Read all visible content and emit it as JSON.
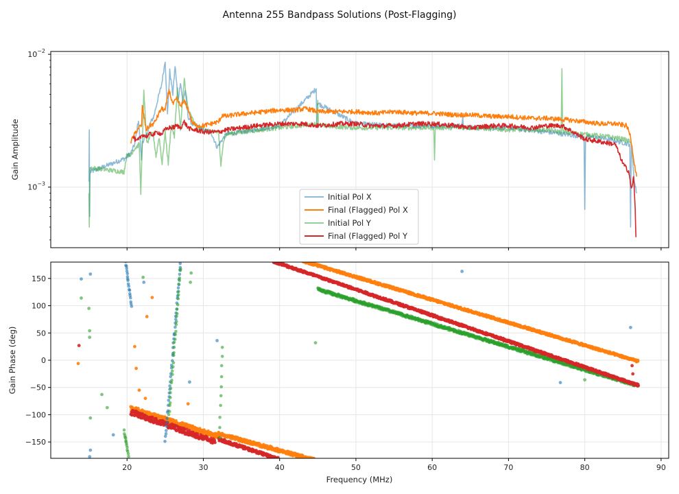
{
  "figure": {
    "suptitle": "Antenna 255 Bandpass Solutions (Post-Flagging)"
  },
  "colors": {
    "initial_x": "#1f77b4",
    "final_x": "#ff7f0e",
    "initial_y": "#2ca02c",
    "final_y": "#d62728",
    "grid": "#e6e6e6",
    "axis": "#000000"
  },
  "chart_data": [
    {
      "type": "line",
      "title": "",
      "xlabel": "",
      "ylabel": "Gain Amplitude",
      "yscale": "log",
      "xlim": [
        10,
        91
      ],
      "ylim": [
        0.00035,
        0.0105
      ],
      "grid": true,
      "legend": {
        "placement": "lower-center"
      },
      "x_ticks": [
        20,
        30,
        40,
        50,
        60,
        70,
        80,
        90
      ],
      "y_ticks": [
        {
          "value": 0.001,
          "base": "10",
          "exp": "−3"
        },
        {
          "value": 0.01,
          "base": "10",
          "exp": "−2"
        }
      ],
      "series": [
        {
          "name": "Initial Pol X",
          "color_key": "initial_x",
          "alpha": 0.5,
          "x": [
            15.0,
            15.05,
            15.1,
            15.15,
            15.2,
            19.8,
            20.5,
            21.0,
            21.5,
            21.9,
            22.0,
            22.5,
            23.0,
            23.5,
            24.0,
            24.5,
            25.0,
            25.3,
            25.6,
            26.0,
            26.3,
            26.7,
            27.0,
            27.3,
            27.6,
            28.0,
            28.5,
            29.0,
            30.0,
            31.0,
            31.8,
            32.3,
            33.0,
            35.0,
            40.0,
            44.8,
            44.85,
            44.9,
            50.0,
            55.0,
            60.0,
            63.9,
            64.0,
            64.1,
            70.0,
            75.0,
            79.9,
            80.0,
            80.1,
            83.0,
            85.9,
            86.0,
            86.1,
            86.5,
            86.8
          ],
          "y": [
            0.0011,
            0.0027,
            0.0006,
            0.0014,
            0.0013,
            0.00165,
            0.0018,
            0.0021,
            0.0032,
            0.0016,
            0.0022,
            0.0024,
            0.003,
            0.0034,
            0.0045,
            0.0058,
            0.009,
            0.0035,
            0.0075,
            0.005,
            0.0082,
            0.0045,
            0.0062,
            0.0044,
            0.0053,
            0.0034,
            0.003,
            0.0029,
            0.0027,
            0.0026,
            0.002,
            0.0022,
            0.0025,
            0.0026,
            0.0029,
            0.0055,
            0.0029,
            0.0043,
            0.003,
            0.0029,
            0.0029,
            0.0029,
            0.0034,
            0.0028,
            0.0028,
            0.0026,
            0.0024,
            0.00068,
            0.0024,
            0.0023,
            0.0021,
            0.0005,
            0.0021,
            0.0011,
            0.0009
          ]
        },
        {
          "name": "Final (Flagged) Pol X",
          "color_key": "final_x",
          "alpha": 1,
          "x": [
            20.5,
            21.0,
            21.5,
            21.9,
            22.0,
            22.5,
            23.0,
            23.5,
            24.0,
            24.5,
            25.0,
            25.5,
            26.0,
            26.5,
            27.0,
            27.5,
            28.0,
            28.5,
            29.0,
            30.0,
            31.0,
            32.0,
            32.5,
            33.0,
            34.0,
            36.0,
            38.0,
            40.0,
            42.0,
            43.5,
            45.0,
            47.0,
            50.0,
            53.0,
            55.0,
            58.0,
            60.0,
            63.0,
            65.0,
            68.0,
            70.0,
            73.0,
            75.0,
            78.0,
            80.0,
            82.0,
            84.0,
            85.5,
            86.0,
            86.5,
            86.8
          ],
          "y": [
            0.0022,
            0.0025,
            0.0028,
            0.0029,
            0.0041,
            0.0027,
            0.0029,
            0.003,
            0.0034,
            0.0039,
            0.0038,
            0.0054,
            0.0042,
            0.0046,
            0.0041,
            0.0044,
            0.0039,
            0.0031,
            0.0029,
            0.0029,
            0.003,
            0.0031,
            0.0035,
            0.0034,
            0.0035,
            0.0036,
            0.0037,
            0.0038,
            0.0038,
            0.0039,
            0.0037,
            0.0037,
            0.0037,
            0.0036,
            0.0037,
            0.0036,
            0.0036,
            0.0035,
            0.0035,
            0.0034,
            0.0034,
            0.0033,
            0.0033,
            0.0032,
            0.0031,
            0.003,
            0.003,
            0.0029,
            0.0024,
            0.0015,
            0.0012
          ]
        },
        {
          "name": "Initial Pol Y",
          "color_key": "initial_y",
          "alpha": 0.5,
          "x": [
            15.0,
            15.05,
            15.1,
            15.15,
            19.6,
            20.0,
            20.4,
            20.8,
            21.2,
            21.6,
            21.8,
            22.2,
            22.6,
            23.0,
            23.4,
            23.8,
            24.2,
            24.6,
            25.0,
            25.4,
            25.8,
            26.2,
            26.6,
            27.0,
            27.5,
            28.0,
            29.0,
            30.0,
            31.0,
            32.0,
            32.3,
            32.6,
            33.0,
            35.0,
            40.0,
            44.9,
            45.0,
            45.1,
            50.0,
            55.0,
            60.2,
            60.3,
            60.4,
            65.0,
            70.0,
            75.0,
            76.9,
            77.0,
            77.1,
            80.0,
            83.0,
            85.0,
            86.0
          ],
          "y": [
            0.0009,
            0.0005,
            0.0011,
            0.0014,
            0.0013,
            0.0018,
            0.0017,
            0.0019,
            0.002,
            0.0021,
            0.0009,
            0.0052,
            0.0021,
            0.0024,
            0.0026,
            0.0017,
            0.0024,
            0.0015,
            0.0026,
            0.0015,
            0.003,
            0.0024,
            0.0055,
            0.0027,
            0.0066,
            0.0038,
            0.0029,
            0.0027,
            0.0026,
            0.0026,
            0.0014,
            0.0022,
            0.0025,
            0.0026,
            0.0028,
            0.003,
            0.0045,
            0.0029,
            0.0028,
            0.0028,
            0.0028,
            0.0016,
            0.0028,
            0.0028,
            0.0027,
            0.0027,
            0.0026,
            0.0078,
            0.0026,
            0.0025,
            0.0024,
            0.0023,
            0.0022
          ]
        },
        {
          "name": "Final (Flagged) Pol Y",
          "color_key": "final_y",
          "alpha": 1,
          "x": [
            20.8,
            21.2,
            21.6,
            22.0,
            22.5,
            23.0,
            23.5,
            24.0,
            24.5,
            25.0,
            25.5,
            26.0,
            26.5,
            27.0,
            27.5,
            28.0,
            28.5,
            29.0,
            30.0,
            31.0,
            32.0,
            33.0,
            35.0,
            37.0,
            40.0,
            43.0,
            45.0,
            48.0,
            50.0,
            52.0,
            55.0,
            58.0,
            60.0,
            63.0,
            65.0,
            68.0,
            70.0,
            73.0,
            75.0,
            77.0,
            78.0,
            80.0,
            82.0,
            84.0,
            85.0,
            85.8,
            86.1,
            86.4,
            86.6,
            86.7
          ],
          "y": [
            0.0024,
            0.0022,
            0.0023,
            0.0025,
            0.0024,
            0.0025,
            0.0025,
            0.0026,
            0.0025,
            0.0027,
            0.0028,
            0.0028,
            0.0029,
            0.0028,
            0.0031,
            0.0028,
            0.0027,
            0.0027,
            0.0026,
            0.0026,
            0.0026,
            0.0027,
            0.0028,
            0.0029,
            0.003,
            0.003,
            0.0029,
            0.003,
            0.003,
            0.0029,
            0.0029,
            0.003,
            0.003,
            0.0029,
            0.0028,
            0.0029,
            0.0029,
            0.0028,
            0.0029,
            0.0029,
            0.0027,
            0.0023,
            0.0022,
            0.0021,
            0.0015,
            0.0013,
            0.00095,
            0.0012,
            0.0007,
            0.00042
          ]
        }
      ]
    },
    {
      "type": "scatter",
      "title": "",
      "xlabel": "Frequency (MHz)",
      "ylabel": "Gain Phase (deg)",
      "xlim": [
        10,
        91
      ],
      "ylim": [
        -180,
        180
      ],
      "grid": true,
      "x_ticks": [
        20,
        30,
        40,
        50,
        60,
        70,
        80,
        90
      ],
      "y_ticks": [
        -150,
        -100,
        -50,
        0,
        50,
        100,
        150
      ],
      "tracks": [
        {
          "series": "Final (Flagged) Pol X",
          "color_key": "final_x",
          "x_start": 20.5,
          "y_start": -88,
          "x_end": 32.0,
          "y_end": -140,
          "spread": 8
        },
        {
          "series": "Final (Flagged) Pol X",
          "color_key": "final_x",
          "x_start": 32.0,
          "y_start": -135,
          "x_end": 45.0,
          "y_end": -185,
          "spread": 6
        },
        {
          "series": "Final (Flagged) Pol X",
          "color_key": "final_x",
          "x_start": 43.0,
          "y_start": 182,
          "x_end": 87.0,
          "y_end": -2,
          "spread": 4
        },
        {
          "series": "Initial Pol Y",
          "color_key": "initial_y",
          "x_start": 45.0,
          "y_start": 130,
          "x_end": 86.5,
          "y_end": -45,
          "spread": 5
        },
        {
          "series": "Final (Flagged) Pol Y",
          "color_key": "final_y",
          "x_start": 39.0,
          "y_start": 182,
          "x_end": 87.0,
          "y_end": -46,
          "spread": 4
        },
        {
          "series": "Final (Flagged) Pol Y",
          "color_key": "final_y",
          "x_start": 20.5,
          "y_start": -95,
          "x_end": 31.5,
          "y_end": -150,
          "spread": 10
        },
        {
          "series": "Final (Flagged) Pol Y",
          "color_key": "final_y",
          "x_start": 32.0,
          "y_start": -145,
          "x_end": 40.0,
          "y_end": -182,
          "spread": 5
        },
        {
          "series": "Initial Pol X",
          "color_key": "initial_x",
          "x_start": 19.8,
          "y_start": 180,
          "x_end": 20.6,
          "y_end": 100,
          "spread": 4
        },
        {
          "series": "Initial Pol X",
          "color_key": "initial_x",
          "x_start": 25.0,
          "y_start": -150,
          "x_end": 27.0,
          "y_end": 178,
          "spread": 6
        },
        {
          "series": "Initial Pol Y",
          "color_key": "initial_y",
          "x_start": 19.6,
          "y_start": -130,
          "x_end": 20.2,
          "y_end": -175,
          "spread": 4
        },
        {
          "series": "Initial Pol Y",
          "color_key": "initial_y",
          "x_start": 32.1,
          "y_start": -140,
          "x_end": 32.5,
          "y_end": 25,
          "spread": 5
        },
        {
          "series": "Initial Pol Y",
          "color_key": "initial_y",
          "x_start": 25.5,
          "y_start": -100,
          "x_end": 27.0,
          "y_end": 170,
          "spread": 6
        }
      ],
      "outliers": [
        {
          "color_key": "initial_x",
          "x": 14.0,
          "y": 149
        },
        {
          "color_key": "initial_x",
          "x": 15.2,
          "y": 158
        },
        {
          "color_key": "initial_x",
          "x": 15.2,
          "y": -165
        },
        {
          "color_key": "initial_x",
          "x": 18.2,
          "y": -137
        },
        {
          "color_key": "initial_x",
          "x": 31.8,
          "y": 36
        },
        {
          "color_key": "initial_x",
          "x": 63.9,
          "y": 163
        },
        {
          "color_key": "initial_x",
          "x": 76.8,
          "y": -41
        },
        {
          "color_key": "initial_x",
          "x": 86.0,
          "y": 60
        },
        {
          "color_key": "initial_x",
          "x": 22.2,
          "y": 143
        },
        {
          "color_key": "initial_x",
          "x": 28.2,
          "y": -40
        },
        {
          "color_key": "initial_x",
          "x": 15.1,
          "y": -177
        },
        {
          "color_key": "initial_y",
          "x": 14.0,
          "y": 114
        },
        {
          "color_key": "initial_y",
          "x": 15.0,
          "y": 95
        },
        {
          "color_key": "initial_y",
          "x": 15.1,
          "y": 54
        },
        {
          "color_key": "initial_y",
          "x": 15.1,
          "y": 42
        },
        {
          "color_key": "initial_y",
          "x": 15.2,
          "y": -106
        },
        {
          "color_key": "initial_y",
          "x": 16.7,
          "y": -63
        },
        {
          "color_key": "initial_y",
          "x": 17.4,
          "y": -87
        },
        {
          "color_key": "initial_y",
          "x": 22.1,
          "y": 152
        },
        {
          "color_key": "initial_y",
          "x": 28.3,
          "y": 143
        },
        {
          "color_key": "initial_y",
          "x": 28.4,
          "y": 160
        },
        {
          "color_key": "initial_y",
          "x": 44.7,
          "y": 32
        },
        {
          "color_key": "initial_y",
          "x": 80.0,
          "y": -36
        },
        {
          "color_key": "final_x",
          "x": 13.6,
          "y": -6
        },
        {
          "color_key": "final_x",
          "x": 21.2,
          "y": -15
        },
        {
          "color_key": "final_x",
          "x": 21.6,
          "y": -55
        },
        {
          "color_key": "final_x",
          "x": 22.4,
          "y": -70
        },
        {
          "color_key": "final_x",
          "x": 28.0,
          "y": -80
        },
        {
          "color_key": "final_x",
          "x": 23.3,
          "y": 115
        },
        {
          "color_key": "final_x",
          "x": 22.6,
          "y": 80
        },
        {
          "color_key": "final_x",
          "x": 21.0,
          "y": 25
        },
        {
          "color_key": "final_y",
          "x": 13.7,
          "y": 27
        },
        {
          "color_key": "final_y",
          "x": 86.3,
          "y": -25
        },
        {
          "color_key": "final_y",
          "x": 86.2,
          "y": -10
        }
      ]
    }
  ]
}
